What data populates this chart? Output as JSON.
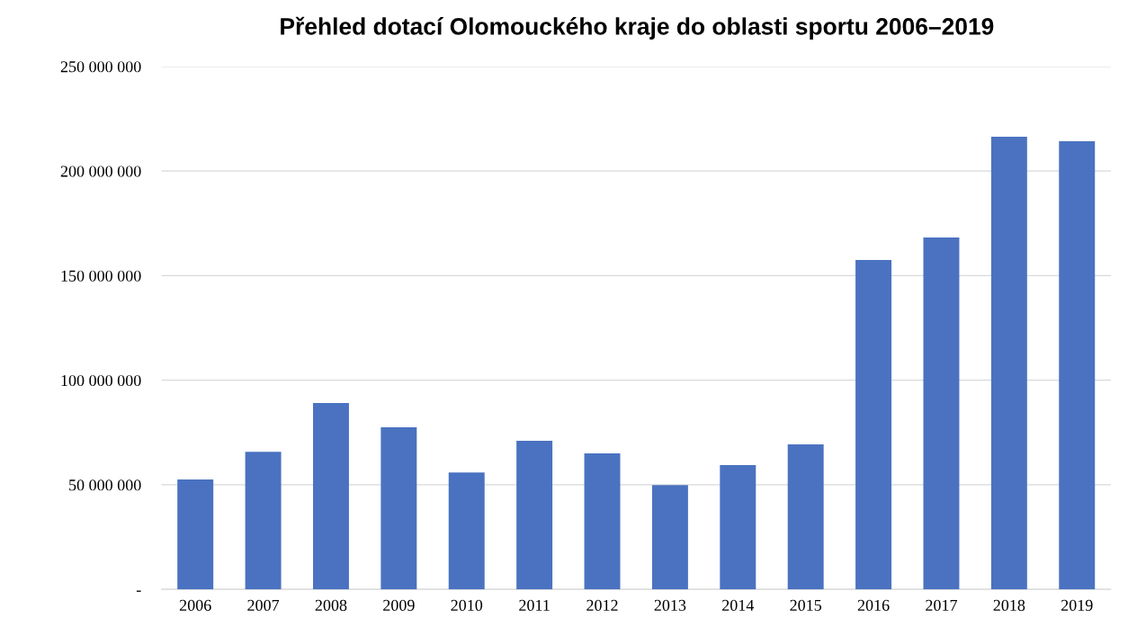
{
  "chart_data": {
    "type": "bar",
    "title": "Přehled dotací Olomouckého kraje do oblasti sportu 2006–2019",
    "categories": [
      "2006",
      "2007",
      "2008",
      "2009",
      "2010",
      "2011",
      "2012",
      "2013",
      "2014",
      "2015",
      "2016",
      "2017",
      "2018",
      "2019"
    ],
    "values": [
      52500000,
      65800000,
      89100000,
      77500000,
      55900000,
      71000000,
      65000000,
      49900000,
      59400000,
      69300000,
      157500000,
      168200000,
      216400000,
      214300000
    ],
    "color": "#4a72c0",
    "ylim": [
      0,
      250000000
    ],
    "yticks": [
      {
        "value": 0,
        "label": "-"
      },
      {
        "value": 50000000,
        "label": "50 000 000"
      },
      {
        "value": 100000000,
        "label": "100 000 000"
      },
      {
        "value": 150000000,
        "label": "150 000 000"
      },
      {
        "value": 200000000,
        "label": "200 000 000"
      },
      {
        "value": 250000000,
        "label": "250 000 000"
      }
    ],
    "grid": "y"
  }
}
